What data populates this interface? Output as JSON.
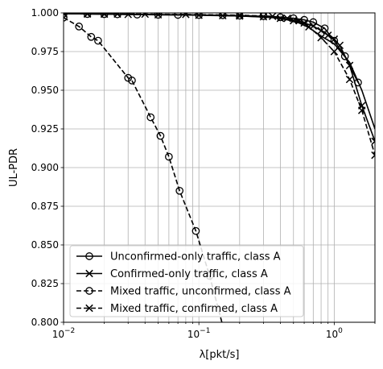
{
  "chart_data": {
    "type": "line",
    "title": "",
    "xlabel": "λ[pkt/s]",
    "ylabel": "UL-PDR",
    "xscale": "log",
    "xlim": [
      0.01,
      2.0
    ],
    "ylim": [
      0.8,
      1.0
    ],
    "grid": true,
    "legend_position": "lower-left",
    "x_ticks": [
      {
        "value": 0.01,
        "base": "10",
        "exp": "−2"
      },
      {
        "value": 0.1,
        "base": "10",
        "exp": "−1"
      },
      {
        "value": 1,
        "base": "10",
        "exp": "0"
      }
    ],
    "y_ticks": [
      "0.800",
      "0.825",
      "0.850",
      "0.875",
      "0.900",
      "0.925",
      "0.950",
      "0.975",
      "1.000"
    ],
    "series": [
      {
        "name": "Unconfirmed-only traffic, class A",
        "linestyle": "solid",
        "marker": "circle",
        "x": [
          0.01,
          0.015,
          0.02,
          0.025,
          0.035,
          0.05,
          0.07,
          0.1,
          0.15,
          0.2,
          0.3,
          0.4,
          0.5,
          0.6,
          0.7,
          0.85,
          1.0,
          1.2,
          1.5
        ],
        "y": [
          0.9995,
          0.9993,
          0.9992,
          0.9991,
          0.9989,
          0.9988,
          0.9987,
          0.9986,
          0.9985,
          0.9982,
          0.9978,
          0.9972,
          0.9965,
          0.9955,
          0.994,
          0.99,
          0.982,
          0.972,
          0.955
        ]
      },
      {
        "name": "Confirmed-only traffic, class A",
        "linestyle": "solid",
        "marker": "x",
        "x": [
          0.01,
          0.015,
          0.02,
          0.03,
          0.05,
          0.1,
          0.15,
          0.2,
          0.3,
          0.4,
          0.5,
          0.6,
          0.7,
          0.8,
          0.9,
          1.0,
          1.1,
          1.3,
          1.6,
          2.0
        ],
        "y": [
          0.9995,
          0.9993,
          0.9992,
          0.999,
          0.9988,
          0.9985,
          0.9982,
          0.998,
          0.9975,
          0.9965,
          0.995,
          0.9935,
          0.9915,
          0.9885,
          0.9855,
          0.983,
          0.979,
          0.966,
          0.94,
          0.917
        ]
      },
      {
        "name": "Mixed traffic, unconfirmed, class A",
        "linestyle": "dashed",
        "marker": "circle",
        "x": [
          0.01,
          0.013,
          0.016,
          0.018,
          0.03,
          0.032,
          0.044,
          0.052,
          0.06,
          0.072,
          0.095,
          0.12,
          0.17
        ],
        "y": [
          0.997,
          0.9912,
          0.9845,
          0.982,
          0.958,
          0.9563,
          0.9325,
          0.9205,
          0.907,
          0.885,
          0.859,
          0.83,
          0.78
        ]
      },
      {
        "name": "Mixed traffic, confirmed, class A",
        "linestyle": "dashed",
        "marker": "x",
        "x": [
          0.01,
          0.015,
          0.02,
          0.025,
          0.04,
          0.08,
          0.2,
          0.35,
          0.45,
          0.55,
          0.65,
          0.8,
          1.0,
          1.3,
          1.6,
          2.0
        ],
        "y": [
          0.9995,
          0.9995,
          0.9994,
          0.9993,
          0.9992,
          0.999,
          0.9985,
          0.9978,
          0.9965,
          0.995,
          0.991,
          0.984,
          0.975,
          0.957,
          0.937,
          0.908
        ]
      }
    ],
    "extra_curve": {
      "x": [
        0.01,
        0.015,
        0.02,
        0.025,
        0.04,
        0.08,
        0.2,
        0.35,
        0.45,
        0.55,
        0.65,
        0.8,
        1.0,
        1.3,
        1.6,
        2.0
      ],
      "y": [
        0.9995,
        0.9994,
        0.9993,
        0.9992,
        0.999,
        0.9988,
        0.998,
        0.997,
        0.9955,
        0.9935,
        0.9905,
        0.985,
        0.98,
        0.968,
        0.95,
        0.925
      ]
    }
  }
}
